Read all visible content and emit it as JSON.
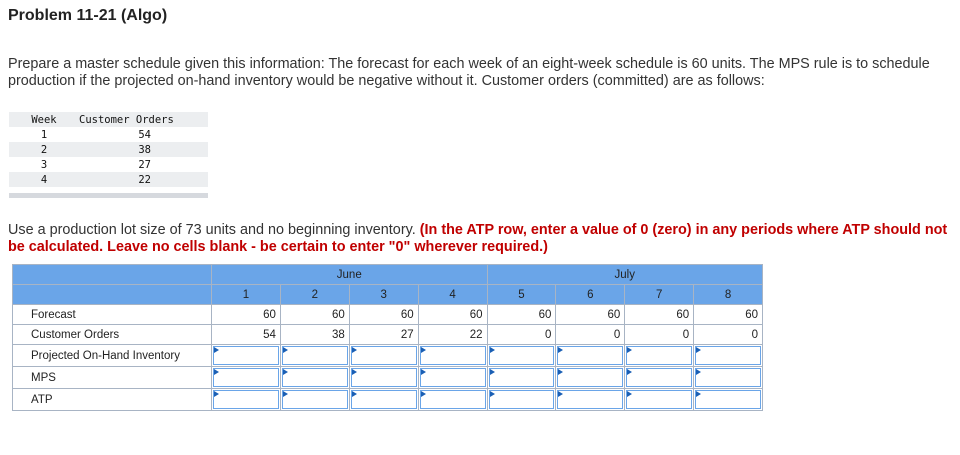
{
  "title": "Problem 11-21 (Algo)",
  "intro": "Prepare a master schedule given this information: The forecast for each week of an eight-week schedule is 60 units. The MPS rule is to schedule production if the projected on-hand inventory would be negative without it. Customer orders (committed) are as follows:",
  "given": {
    "headers": [
      "Week",
      "Customer Orders"
    ],
    "rows": [
      [
        "1",
        "54"
      ],
      [
        "2",
        "38"
      ],
      [
        "3",
        "27"
      ],
      [
        "4",
        "22"
      ]
    ]
  },
  "instructions": {
    "plain": "Use a production lot size of 73 units and no beginning inventory. ",
    "red": "(In the ATP row, enter a value of 0 (zero) in any periods where ATP should not be calculated. Leave no cells blank - be certain to enter \"0\" wherever required.)"
  },
  "schedule": {
    "months": [
      "June",
      "July"
    ],
    "weeks": [
      "1",
      "2",
      "3",
      "4",
      "5",
      "6",
      "7",
      "8"
    ],
    "rows": [
      {
        "label": "Forecast",
        "values": [
          "60",
          "60",
          "60",
          "60",
          "60",
          "60",
          "60",
          "60"
        ]
      },
      {
        "label": "Customer Orders",
        "values": [
          "54",
          "38",
          "27",
          "22",
          "0",
          "0",
          "0",
          "0"
        ]
      },
      {
        "label": "Projected On-Hand Inventory",
        "values": []
      },
      {
        "label": "MPS",
        "values": []
      },
      {
        "label": "ATP",
        "values": []
      }
    ]
  },
  "colors": {
    "header_blue": "#6aa5e8",
    "red_text": "#c00000",
    "input_marker": "#1a5fb4"
  }
}
